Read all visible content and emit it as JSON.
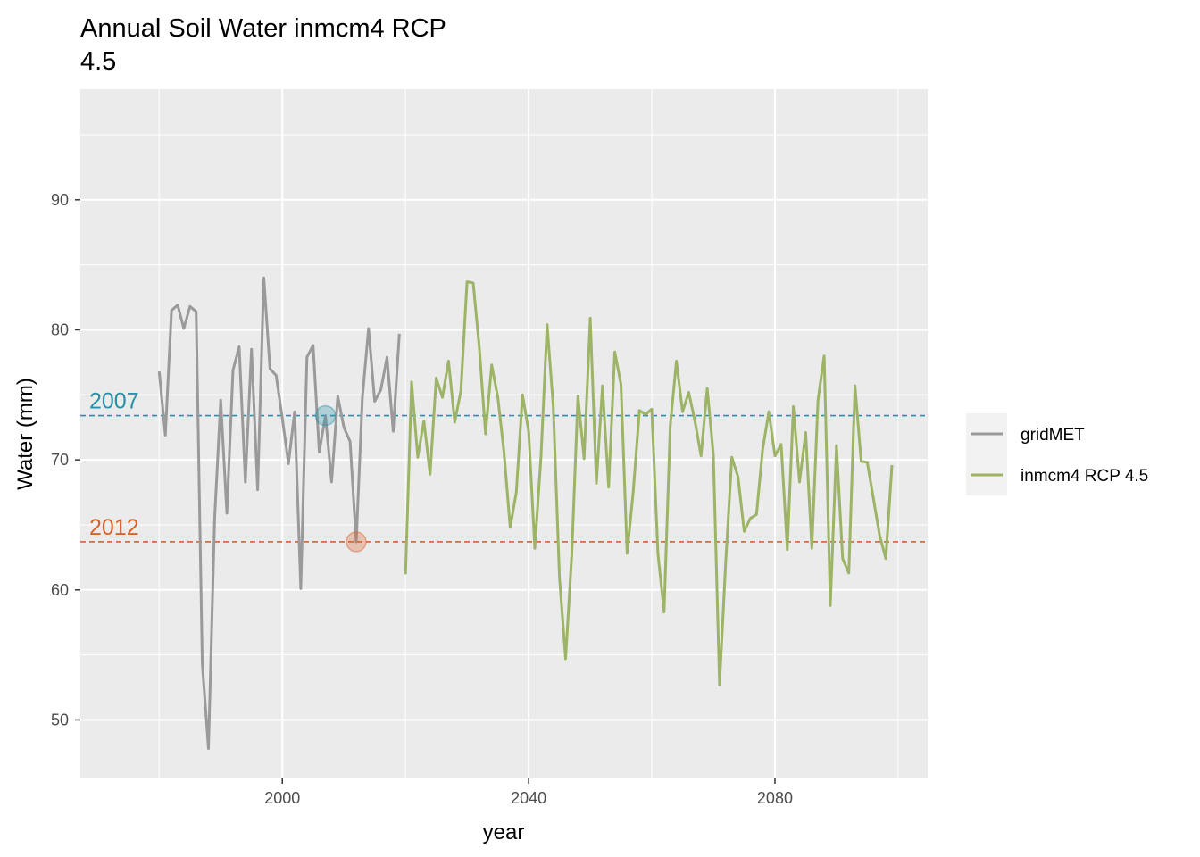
{
  "chart_data": {
    "type": "line",
    "title_lines": [
      "Annual Soil Water inmcm4 RCP",
      "4.5"
    ],
    "xlabel": "year",
    "ylabel": "Water (mm)",
    "xlim": [
      1967.2,
      2104.8
    ],
    "ylim": [
      45.5,
      98.5
    ],
    "x_ticks": [
      2000,
      2040,
      2080
    ],
    "x_minor_ticks": [
      1980,
      2020,
      2060,
      2100
    ],
    "y_ticks": [
      50,
      60,
      70,
      80,
      90
    ],
    "y_minor_ticks": [
      55,
      65,
      75,
      85,
      95
    ],
    "x_tick_labels": [
      "2000",
      "2040",
      "2080"
    ],
    "y_tick_labels": [
      "50",
      "60",
      "70",
      "80",
      "90"
    ],
    "grid": true,
    "legend_position": "right",
    "series": [
      {
        "name": "gridMET",
        "color": "#9a9a9a",
        "x": [
          1980,
          1981,
          1982,
          1983,
          1984,
          1985,
          1986,
          1987,
          1988,
          1989,
          1990,
          1991,
          1992,
          1993,
          1994,
          1995,
          1996,
          1997,
          1998,
          1999,
          2000,
          2001,
          2002,
          2003,
          2004,
          2005,
          2006,
          2007,
          2008,
          2009,
          2010,
          2011,
          2012,
          2013,
          2014,
          2015,
          2016,
          2017,
          2018,
          2019
        ],
        "y": [
          76.8,
          71.9,
          81.5,
          81.9,
          80.1,
          81.8,
          81.4,
          54.3,
          47.8,
          65.5,
          74.6,
          65.9,
          76.9,
          78.7,
          68.3,
          78.5,
          67.7,
          84.0,
          77.0,
          76.5,
          73.2,
          69.7,
          73.7,
          60.1,
          77.9,
          78.8,
          70.6,
          73.4,
          68.3,
          74.9,
          72.5,
          71.4,
          63.7,
          74.8,
          80.1,
          74.5,
          75.4,
          77.9,
          72.2,
          79.7
        ]
      },
      {
        "name": "inmcm4 RCP 4.5",
        "color": "#9db467",
        "x": [
          2020,
          2021,
          2022,
          2023,
          2024,
          2025,
          2026,
          2027,
          2028,
          2029,
          2030,
          2031,
          2032,
          2033,
          2034,
          2035,
          2036,
          2037,
          2038,
          2039,
          2040,
          2041,
          2042,
          2043,
          2044,
          2045,
          2046,
          2047,
          2048,
          2049,
          2050,
          2051,
          2052,
          2053,
          2054,
          2055,
          2056,
          2057,
          2058,
          2059,
          2060,
          2061,
          2062,
          2063,
          2064,
          2065,
          2066,
          2067,
          2068,
          2069,
          2070,
          2071,
          2072,
          2073,
          2074,
          2075,
          2076,
          2077,
          2078,
          2079,
          2080,
          2081,
          2082,
          2083,
          2084,
          2085,
          2086,
          2087,
          2088,
          2089,
          2090,
          2091,
          2092,
          2093,
          2094,
          2095,
          2096,
          2097,
          2098,
          2099
        ],
        "y": [
          61.2,
          76.0,
          70.2,
          73.0,
          68.9,
          76.3,
          74.8,
          77.6,
          72.9,
          75.3,
          83.7,
          83.6,
          78.6,
          72.0,
          77.3,
          74.8,
          70.6,
          64.8,
          67.5,
          75.0,
          72.2,
          63.2,
          70.2,
          80.4,
          74.1,
          61.0,
          54.7,
          62.7,
          74.9,
          70.1,
          80.9,
          68.2,
          75.7,
          67.9,
          78.3,
          75.8,
          62.8,
          67.6,
          73.8,
          73.5,
          73.9,
          62.8,
          58.3,
          72.6,
          77.6,
          73.7,
          75.2,
          73.0,
          70.3,
          75.5,
          70.4,
          52.7,
          62.1,
          70.2,
          68.7,
          64.5,
          65.5,
          65.8,
          70.8,
          73.7,
          70.3,
          71.2,
          63.1,
          74.1,
          68.3,
          72.1,
          63.2,
          74.6,
          78.0,
          58.8,
          71.1,
          62.4,
          61.3,
          75.7,
          69.9,
          69.8,
          67.0,
          64.2,
          62.4,
          69.6
        ]
      }
    ],
    "reference_lines": [
      {
        "label": "2007",
        "y": 73.4,
        "color": "#2890a9",
        "marker_x": 2007
      },
      {
        "label": "2012",
        "y": 63.7,
        "color": "#d9612a",
        "marker_x": 2012
      }
    ]
  }
}
